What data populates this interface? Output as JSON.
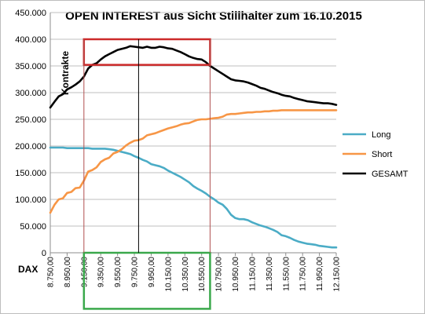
{
  "chart_data": {
    "type": "line",
    "title": "OPEN INTEREST aus Sicht Stillhalter zum 16.10.2015",
    "xlabel": "DAX",
    "ylabel": "Kontrakte",
    "ylim": [
      0,
      450000
    ],
    "yticks": [
      0,
      50000,
      100000,
      150000,
      200000,
      250000,
      300000,
      350000,
      400000,
      450000
    ],
    "ytick_labels": [
      "0",
      "50.000",
      "100.000",
      "150.000",
      "200.000",
      "250.000",
      "300.000",
      "350.000",
      "400.000",
      "450.000"
    ],
    "x": [
      8750,
      8800,
      8850,
      8900,
      8950,
      9000,
      9050,
      9100,
      9150,
      9200,
      9250,
      9300,
      9350,
      9400,
      9450,
      9500,
      9550,
      9600,
      9650,
      9700,
      9750,
      9800,
      9850,
      9900,
      9950,
      10000,
      10050,
      10100,
      10150,
      10200,
      10250,
      10300,
      10350,
      10400,
      10450,
      10500,
      10550,
      10600,
      10650,
      10700,
      10750,
      10800,
      10850,
      10900,
      10950,
      11000,
      11050,
      11100,
      11150,
      11200,
      11250,
      11300,
      11350,
      11400,
      11450,
      11500,
      11550,
      11600,
      11650,
      11700,
      11750,
      11800,
      11850,
      11900,
      11950,
      12000,
      12050,
      12100,
      12150
    ],
    "xtick_labels": [
      "8.750,00",
      "8.950,00",
      "9.150,00",
      "9.350,00",
      "9.550,00",
      "9.750,00",
      "9.950,00",
      "10.150,00",
      "10.350,00",
      "10.550,00",
      "10.750,00",
      "10.950,00",
      "11.150,00",
      "11.350,00",
      "11.550,00",
      "11.750,00",
      "11.950,00",
      "12.150,00"
    ],
    "legend_position": "right",
    "grid": true,
    "series": [
      {
        "name": "Long",
        "color": "#4bacc6",
        "values": [
          197000,
          197000,
          197000,
          197000,
          196000,
          196000,
          196000,
          196000,
          196000,
          196000,
          195000,
          195000,
          195000,
          195000,
          194000,
          193000,
          191000,
          189000,
          187000,
          185000,
          181000,
          178000,
          174000,
          171000,
          166000,
          164000,
          162000,
          159000,
          154000,
          150000,
          146000,
          142000,
          137000,
          132000,
          125000,
          120000,
          116000,
          111000,
          105000,
          100000,
          94000,
          90000,
          82000,
          71000,
          65000,
          63000,
          63000,
          61000,
          57000,
          54000,
          51000,
          49000,
          46000,
          43000,
          39000,
          33000,
          31000,
          28000,
          24000,
          21000,
          19000,
          17000,
          16000,
          15000,
          13000,
          12000,
          11000,
          10000,
          10000
        ]
      },
      {
        "name": "Short",
        "color": "#f79646",
        "values": [
          75000,
          90000,
          100000,
          102000,
          112000,
          114000,
          121000,
          122000,
          135000,
          152000,
          155000,
          160000,
          170000,
          175000,
          178000,
          186000,
          189000,
          194000,
          201000,
          206000,
          210000,
          211000,
          214000,
          220000,
          222000,
          224000,
          227000,
          230000,
          233000,
          235000,
          237000,
          240000,
          242000,
          243000,
          246000,
          249000,
          250000,
          250000,
          251000,
          252000,
          253000,
          255000,
          259000,
          260000,
          260000,
          261000,
          262000,
          263000,
          263000,
          264000,
          264000,
          265000,
          265000,
          266000,
          266000,
          267000,
          267000,
          267000,
          267000,
          267000,
          267000,
          267000,
          267000,
          267000,
          267000,
          267000,
          267000,
          267000,
          267000
        ]
      },
      {
        "name": "GESAMT",
        "color": "#000000",
        "values": [
          272000,
          283000,
          293000,
          297000,
          306000,
          310000,
          315000,
          321000,
          330000,
          345000,
          352000,
          355000,
          362000,
          368000,
          372000,
          376000,
          380000,
          382000,
          384000,
          387000,
          386000,
          385000,
          384000,
          386000,
          384000,
          384000,
          386000,
          385000,
          383000,
          382000,
          379000,
          376000,
          372000,
          368000,
          365000,
          363000,
          362000,
          357000,
          350000,
          345000,
          340000,
          335000,
          330000,
          325000,
          323000,
          322000,
          321000,
          319000,
          316000,
          313000,
          309000,
          307000,
          304000,
          301000,
          299000,
          296000,
          294000,
          293000,
          290000,
          288000,
          286000,
          284000,
          283000,
          282000,
          281000,
          280000,
          280000,
          279000,
          277000
        ]
      }
    ],
    "annotations": [
      {
        "type": "rect",
        "label": "top-range",
        "color": "#cc2a2a",
        "x_range": [
          9150,
          10650
        ],
        "y_range": [
          352000,
          400000
        ]
      },
      {
        "type": "rect",
        "label": "bottom-range",
        "color": "#3aa84b",
        "x_range": [
          9150,
          10650
        ],
        "y_range": [
          -105000,
          0
        ]
      },
      {
        "type": "vline",
        "label": "max-line",
        "color": "#000000",
        "x": 9800
      },
      {
        "type": "vline",
        "label": "left-range-line",
        "color": "#b05050",
        "x": 9150
      },
      {
        "type": "vline",
        "label": "right-range-line",
        "color": "#b05050",
        "x": 10650
      }
    ]
  }
}
